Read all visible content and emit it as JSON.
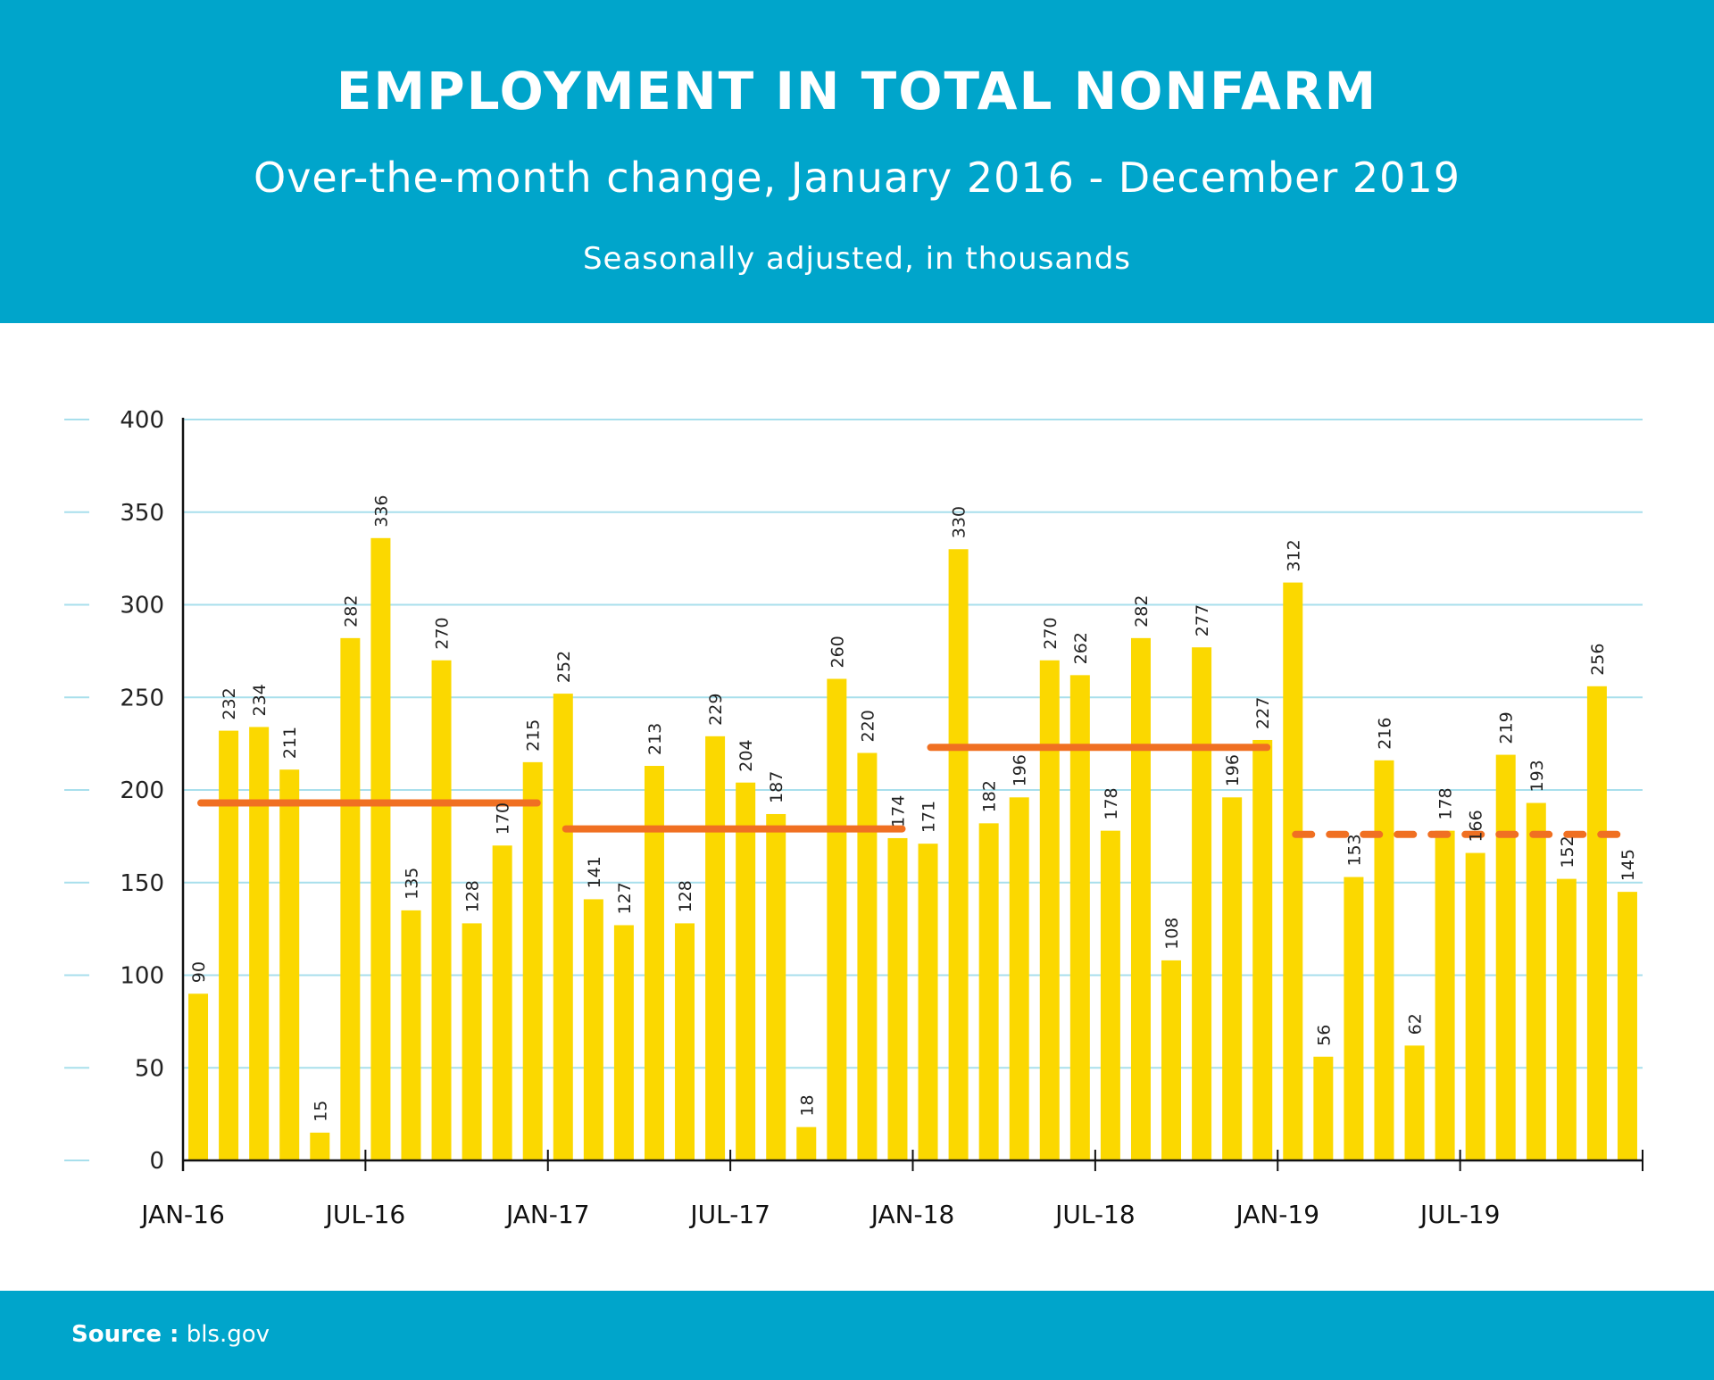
{
  "header": {
    "title": "EMPLOYMENT IN TOTAL NONFARM",
    "subtitle": "Over-the-month change, January 2016 - December 2019",
    "note": "Seasonally adjusted, in thousands"
  },
  "footer": {
    "source_label": "Source :",
    "source_value": "bls.gov"
  },
  "colors": {
    "header_bg": "#00a5cb",
    "bar": "#fbd800",
    "average_line": "#f07022",
    "gridline": "#a8dfec",
    "axis": "#111111"
  },
  "chart_data": {
    "type": "bar",
    "title": "EMPLOYMENT IN TOTAL NONFARM",
    "subtitle": "Over-the-month change, January 2016 - December 2019",
    "xlabel": "",
    "ylabel": "Seasonally adjusted, in thousands",
    "ylim": [
      0,
      400
    ],
    "yticks": [
      0,
      50,
      100,
      150,
      200,
      250,
      300,
      350,
      400
    ],
    "grid": true,
    "xtick_labels": [
      "JAN-16",
      "JUL-16",
      "JAN-17",
      "JUL-17",
      "JAN-18",
      "JUL-18",
      "JAN-19",
      "JUL-19"
    ],
    "categories": [
      "Jan-16",
      "Feb-16",
      "Mar-16",
      "Apr-16",
      "May-16",
      "Jun-16",
      "Jul-16",
      "Aug-16",
      "Sep-16",
      "Oct-16",
      "Nov-16",
      "Dec-16",
      "Jan-17",
      "Feb-17",
      "Mar-17",
      "Apr-17",
      "May-17",
      "Jun-17",
      "Jul-17",
      "Aug-17",
      "Sep-17",
      "Oct-17",
      "Nov-17",
      "Dec-17",
      "Jan-18",
      "Feb-18",
      "Mar-18",
      "Apr-18",
      "May-18",
      "Jun-18",
      "Jul-18",
      "Aug-18",
      "Sep-18",
      "Oct-18",
      "Nov-18",
      "Dec-18",
      "Jan-19",
      "Feb-19",
      "Mar-19",
      "Apr-19",
      "May-19",
      "Jun-19",
      "Jul-19",
      "Aug-19",
      "Sep-19",
      "Oct-19",
      "Nov-19",
      "Dec-19"
    ],
    "values": [
      90,
      232,
      234,
      211,
      15,
      282,
      336,
      135,
      270,
      128,
      170,
      215,
      252,
      141,
      127,
      213,
      128,
      229,
      204,
      187,
      18,
      260,
      220,
      174,
      171,
      330,
      182,
      196,
      270,
      262,
      178,
      282,
      108,
      277,
      196,
      227,
      312,
      56,
      153,
      216,
      62,
      178,
      166,
      219,
      193,
      152,
      256,
      145
    ],
    "annual_averages": [
      {
        "year": "2016",
        "value": 193,
        "style": "solid"
      },
      {
        "year": "2017",
        "value": 179,
        "style": "solid"
      },
      {
        "year": "2018",
        "value": 223,
        "style": "solid"
      },
      {
        "year": "2019",
        "value": 176,
        "style": "dashed"
      }
    ]
  }
}
